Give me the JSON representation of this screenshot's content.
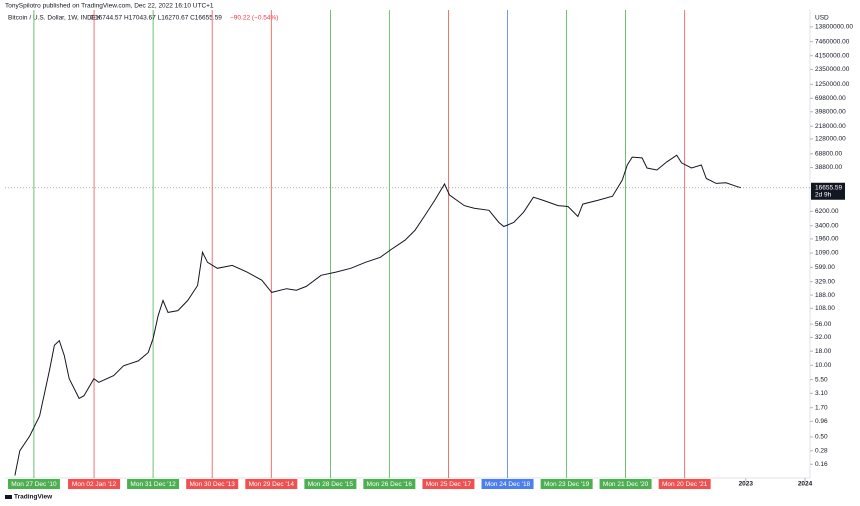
{
  "header": {
    "author_line": "TonySpilotro published on TradingView.com, Dec 22, 2022 16:10 UTC+1",
    "footer": "TradingView"
  },
  "chart_data": {
    "type": "line",
    "title": "Bitcoin / U.S. Dollar, 1W, INDEX",
    "ohlc": "O16744.57 H17043.67 L16270.67 C16655.59",
    "change": "−90.22 (−0.54%)",
    "y_unit": "USD",
    "log_scale": true,
    "ylim": [
      0.09,
      28000000
    ],
    "yticks": [
      {
        "value": 13800000,
        "label": "13800000.00"
      },
      {
        "value": 7460000,
        "label": "7460000.00"
      },
      {
        "value": 4150000,
        "label": "4150000.00"
      },
      {
        "value": 2350000,
        "label": "2350000.00"
      },
      {
        "value": 1250000,
        "label": "1250000.00"
      },
      {
        "value": 698000,
        "label": "698000.00"
      },
      {
        "value": 398000,
        "label": "398000.00"
      },
      {
        "value": 218000,
        "label": "218000.00"
      },
      {
        "value": 128000,
        "label": "128000.00"
      },
      {
        "value": 68800,
        "label": "68800.00"
      },
      {
        "value": 38800,
        "label": "38800.00"
      },
      {
        "value": 6200,
        "label": "6200.00"
      },
      {
        "value": 3400,
        "label": "3400.00"
      },
      {
        "value": 1960,
        "label": "1960.00"
      },
      {
        "value": 1090,
        "label": "1090.00"
      },
      {
        "value": 599,
        "label": "599.00"
      },
      {
        "value": 329,
        "label": "329.00"
      },
      {
        "value": 188,
        "label": "188.00"
      },
      {
        "value": 108,
        "label": "108.00"
      },
      {
        "value": 56,
        "label": "56.00"
      },
      {
        "value": 32,
        "label": "32.00"
      },
      {
        "value": 18,
        "label": "18.00"
      },
      {
        "value": 10,
        "label": "10.00"
      },
      {
        "value": 5.5,
        "label": "5.50"
      },
      {
        "value": 3.1,
        "label": "3.10"
      },
      {
        "value": 1.7,
        "label": "1.70"
      },
      {
        "value": 0.96,
        "label": "0.96"
      },
      {
        "value": 0.5,
        "label": "0.50"
      },
      {
        "value": 0.28,
        "label": "0.28"
      },
      {
        "value": 0.16,
        "label": "0.16"
      }
    ],
    "xlim": [
      "2010-07",
      "2024-02"
    ],
    "xticks": [
      2023,
      2024
    ],
    "last_price": 16655.59,
    "countdown": "2d 9h",
    "series": [
      {
        "color": "#131722",
        "x": [
          "2010-09",
          "2010-10",
          "2010-12",
          "2011-02",
          "2011-04",
          "2011-05",
          "2011-06",
          "2011-07",
          "2011-08",
          "2011-10",
          "2011-11",
          "2012-01",
          "2012-02",
          "2012-05",
          "2012-07",
          "2012-10",
          "2012-12",
          "2013-01",
          "2013-02",
          "2013-03",
          "2013-04",
          "2013-06",
          "2013-08",
          "2013-10",
          "2013-11",
          "2013-12",
          "2014-02",
          "2014-05",
          "2014-08",
          "2014-11",
          "2015-01",
          "2015-04",
          "2015-06",
          "2015-08",
          "2015-11",
          "2016-02",
          "2016-05",
          "2016-08",
          "2016-11",
          "2017-01",
          "2017-04",
          "2017-06",
          "2017-08",
          "2017-10",
          "2017-12",
          "2018-01",
          "2018-04",
          "2018-06",
          "2018-09",
          "2018-11",
          "2018-12",
          "2019-02",
          "2019-04",
          "2019-06",
          "2019-08",
          "2019-11",
          "2020-01",
          "2020-03",
          "2020-04",
          "2020-07",
          "2020-10",
          "2020-12",
          "2021-01",
          "2021-02",
          "2021-04",
          "2021-05",
          "2021-07",
          "2021-09",
          "2021-11",
          "2021-12",
          "2022-02",
          "2022-04",
          "2022-05",
          "2022-07",
          "2022-09",
          "2022-11",
          "2022-12"
        ],
        "values": [
          0.1,
          0.28,
          0.52,
          1.2,
          8,
          23,
          28,
          15,
          5.7,
          2.5,
          2.8,
          5.7,
          4.9,
          6.5,
          9.8,
          12,
          17,
          31,
          79,
          150,
          91,
          98,
          150,
          280,
          1120,
          740,
          575,
          650,
          490,
          350,
          210,
          245,
          230,
          270,
          430,
          490,
          575,
          740,
          910,
          1230,
          1860,
          2800,
          5200,
          9800,
          19500,
          12300,
          7900,
          7100,
          6500,
          3900,
          3300,
          3900,
          6000,
          11200,
          9800,
          7900,
          7600,
          5000,
          8400,
          9800,
          11700,
          23000,
          43000,
          60000,
          58000,
          38000,
          35000,
          49000,
          65000,
          47000,
          38000,
          43000,
          24500,
          20000,
          20500,
          17800,
          16700
        ]
      }
    ],
    "markers": [
      {
        "x": "2010-12-27",
        "label": "Mon 27 Dec '10",
        "color": "#4caf50"
      },
      {
        "x": "2012-01-02",
        "label": "Mon 02 Jan '12",
        "color": "#f05050"
      },
      {
        "x": "2012-12-31",
        "label": "Mon 31 Dec '12",
        "color": "#4caf50"
      },
      {
        "x": "2013-12-30",
        "label": "Mon 30 Dec '13",
        "color": "#f05050"
      },
      {
        "x": "2014-12-29",
        "label": "Mon 29 Dec '14",
        "color": "#f05050"
      },
      {
        "x": "2015-12-28",
        "label": "Mon 28 Dec '15",
        "color": "#4caf50"
      },
      {
        "x": "2016-12-26",
        "label": "Mon 26 Dec '16",
        "color": "#4caf50"
      },
      {
        "x": "2017-12-25",
        "label": "Mon 25 Dec '17",
        "color": "#f05050"
      },
      {
        "x": "2018-12-24",
        "label": "Mon 24 Dec '18",
        "color": "#4a7ff0"
      },
      {
        "x": "2019-12-23",
        "label": "Mon 23 Dec '19",
        "color": "#4caf50"
      },
      {
        "x": "2020-12-21",
        "label": "Mon 21 Dec '20",
        "color": "#4caf50"
      },
      {
        "x": "2021-12-20",
        "label": "Mon 20 Dec '21",
        "color": "#f05050"
      }
    ]
  }
}
